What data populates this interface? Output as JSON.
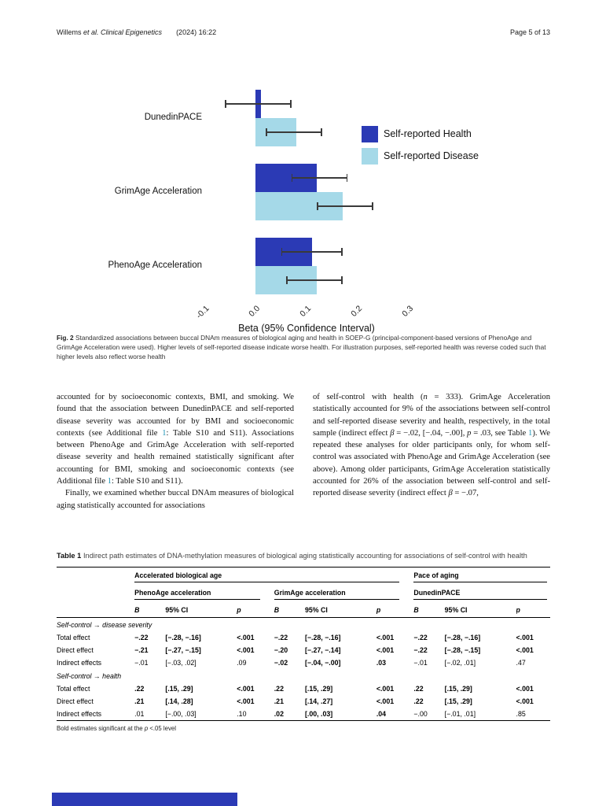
{
  "header": {
    "left_segments": [
      {
        "t": "Willems "
      },
      {
        "t": "et al. Clinical Epigenetics",
        "i": true
      },
      {
        "t": "  (2024) 16:22"
      }
    ],
    "right": "Page 5 of 13"
  },
  "chart_data": {
    "type": "bar",
    "orientation": "horizontal",
    "categories": [
      "DunedinPACE",
      "GrimAge Acceleration",
      "PhenoAge Acceleration"
    ],
    "series": [
      {
        "name": "Self-reported Health",
        "color": "#2b3ab5",
        "values": [
          0.01,
          0.12,
          0.11
        ],
        "ci": [
          [
            -0.06,
            0.07
          ],
          [
            0.07,
            0.18
          ],
          [
            0.05,
            0.17
          ]
        ]
      },
      {
        "name": "Self-reported Disease",
        "color": "#a5d9e8",
        "values": [
          0.08,
          0.17,
          0.12
        ],
        "ci": [
          [
            0.02,
            0.13
          ],
          [
            0.12,
            0.23
          ],
          [
            0.06,
            0.17
          ]
        ]
      }
    ],
    "xlabel": "Beta (95% Confidence Interval)",
    "x_ticks": [
      "-0.1",
      "0.0",
      "0.1",
      "0.2",
      "0.3"
    ],
    "x_tick_values": [
      -0.1,
      0.0,
      0.1,
      0.2,
      0.3
    ],
    "xlim": [
      -0.15,
      0.35
    ],
    "legend_position": "right",
    "grid": false
  },
  "figure": {
    "label": "Fig. 2",
    "caption": "Standardized associations between buccal DNAm measures of biological aging and health in SOEP-G (principal-component-based versions of PhenoAge and GrimAge Acceleration were used). Higher levels of self-reported disease indicate worse health. For illustration purposes, self-reported health was reverse coded such that higher levels also reflect worse health"
  },
  "body": {
    "left": [
      {
        "indent": false,
        "segments": [
          {
            "t": "accounted for by socioeconomic contexts, BMI, and smoking. We found that the association between DunedinPACE and self-reported disease severity was accounted for by BMI and socioeconomic contexts (see Additional file "
          },
          {
            "t": "1",
            "link": true
          },
          {
            "t": ": Table S10 and S11). Associations between PhenoAge and GrimAge Acceleration with self-reported disease severity and health remained statistically significant after accounting for BMI, smoking and socioeconomic contexts (see Additional file "
          },
          {
            "t": "1",
            "link": true
          },
          {
            "t": ": Table S10 and S11)."
          }
        ]
      },
      {
        "indent": true,
        "segments": [
          {
            "t": "Finally, we examined whether buccal DNAm measures of biological aging statistically accounted for associations"
          }
        ]
      }
    ],
    "right": [
      {
        "indent": false,
        "segments": [
          {
            "t": "of self-control with health ("
          },
          {
            "t": "n",
            "i": true
          },
          {
            "t": " = 333). GrimAge Acceleration statistically accounted for 9% of the associations between self-control and self-reported disease severity and health, respectively, in the total sample (indirect effect "
          },
          {
            "t": "β",
            "i": true
          },
          {
            "t": " = −.02, [−.04, −.00], "
          },
          {
            "t": "p",
            "i": true
          },
          {
            "t": " = .03, see Table "
          },
          {
            "t": "1",
            "link": true
          },
          {
            "t": "). We repeated these analyses for older participants only, for whom self-control was associated with PhenoAge and GrimAge Acceleration (see above). Among older participants, GrimAge Acceleration statistically accounted for 26% of the association between self-control and self-reported disease severity (indirect effect "
          },
          {
            "t": "β",
            "i": true
          },
          {
            "t": " = −.07,"
          }
        ]
      }
    ]
  },
  "table": {
    "title_label": "Table 1",
    "title_text": "Indirect path estimates of DNA-methylation measures of biological aging statistically accounting for associations of self-control with health",
    "group_headers": [
      {
        "label": "Accelerated biological age",
        "cols": 6
      },
      {
        "label": "Pace of aging",
        "cols": 3
      }
    ],
    "subgroup_headers": [
      "PhenoAge acceleration",
      "GrimAge acceleration",
      "DunedinPACE"
    ],
    "column_headers": [
      "B",
      "95% CI",
      "p"
    ],
    "sections": [
      {
        "label": "Self-control → disease severity",
        "rows": [
          {
            "label": "Total effect",
            "cells": [
              {
                "v": "−.22",
                "b": true
              },
              {
                "v": "[−.28, −.16]",
                "b": true
              },
              {
                "v": "<.001",
                "b": true
              },
              {
                "v": "−.22",
                "b": true
              },
              {
                "v": "[−.28, −.16]",
                "b": true
              },
              {
                "v": "<.001",
                "b": true
              },
              {
                "v": "−.22",
                "b": true
              },
              {
                "v": "[−.28, −.16]",
                "b": true
              },
              {
                "v": "<.001",
                "b": true
              }
            ]
          },
          {
            "label": "Direct effect",
            "cells": [
              {
                "v": "−.21",
                "b": true
              },
              {
                "v": "[−.27, −.15]",
                "b": true
              },
              {
                "v": "<.001",
                "b": true
              },
              {
                "v": "−.20",
                "b": true
              },
              {
                "v": "[−.27, −.14]",
                "b": true
              },
              {
                "v": "<.001",
                "b": true
              },
              {
                "v": "−.22",
                "b": true
              },
              {
                "v": "[−.28, −.15]",
                "b": true
              },
              {
                "v": "<.001",
                "b": true
              }
            ]
          },
          {
            "label": "Indirect effects",
            "cells": [
              {
                "v": "−.01",
                "b": false
              },
              {
                "v": "[−.03, .02]",
                "b": false
              },
              {
                "v": ".09",
                "b": false
              },
              {
                "v": "−.02",
                "b": true
              },
              {
                "v": "[−.04, −.00]",
                "b": true
              },
              {
                "v": ".03",
                "b": true
              },
              {
                "v": "−.01",
                "b": false
              },
              {
                "v": "[−.02, .01]",
                "b": false
              },
              {
                "v": ".47",
                "b": false
              }
            ]
          }
        ]
      },
      {
        "label": "Self-control → health",
        "rows": [
          {
            "label": "Total effect",
            "cells": [
              {
                "v": ".22",
                "b": true
              },
              {
                "v": "[.15, .29]",
                "b": true
              },
              {
                "v": "<.001",
                "b": true
              },
              {
                "v": ".22",
                "b": true
              },
              {
                "v": "[.15, .29]",
                "b": true
              },
              {
                "v": "<.001",
                "b": true
              },
              {
                "v": ".22",
                "b": true
              },
              {
                "v": "[.15, .29]",
                "b": true
              },
              {
                "v": "<.001",
                "b": true
              }
            ]
          },
          {
            "label": "Direct effect",
            "cells": [
              {
                "v": ".21",
                "b": true
              },
              {
                "v": "[.14, .28]",
                "b": true
              },
              {
                "v": "<.001",
                "b": true
              },
              {
                "v": ".21",
                "b": true
              },
              {
                "v": "[.14, .27]",
                "b": true
              },
              {
                "v": "<.001",
                "b": true
              },
              {
                "v": ".22",
                "b": true
              },
              {
                "v": "[.15, .29]",
                "b": true
              },
              {
                "v": "<.001",
                "b": true
              }
            ]
          },
          {
            "label": "Indirect effects",
            "cells": [
              {
                "v": ".01",
                "b": false
              },
              {
                "v": "[−.00, .03]",
                "b": false
              },
              {
                "v": ".10",
                "b": false
              },
              {
                "v": ".02",
                "b": true
              },
              {
                "v": "[.00, .03]",
                "b": true
              },
              {
                "v": ".04",
                "b": true
              },
              {
                "v": "−.00",
                "b": false
              },
              {
                "v": "[−.01, .01]",
                "b": false
              },
              {
                "v": ".85",
                "b": false
              }
            ]
          }
        ]
      }
    ],
    "footnote_segments": [
      {
        "t": "Bold estimates significant at the "
      },
      {
        "t": "p",
        "i": true
      },
      {
        "t": " <.05 level"
      }
    ]
  },
  "colors": {
    "accent_blue": "#2b3ab5",
    "light_blue": "#a5d9e8",
    "link": "#2196b8"
  }
}
